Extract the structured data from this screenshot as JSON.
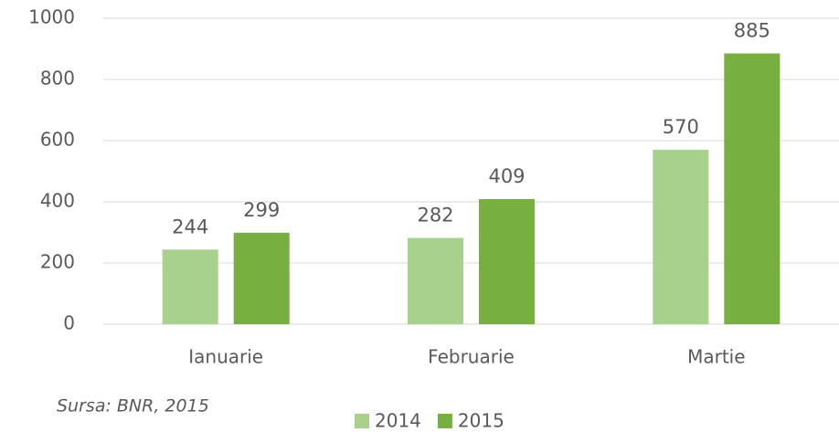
{
  "chart_data": {
    "type": "bar",
    "categories": [
      "Ianuarie",
      "Februarie",
      "Martie"
    ],
    "series": [
      {
        "name": "2014",
        "color": "#a9d18e",
        "values": [
          244,
          282,
          570
        ]
      },
      {
        "name": "2015",
        "color": "#77b041",
        "values": [
          299,
          409,
          885
        ]
      }
    ],
    "ylim": [
      0,
      1000
    ],
    "yticks": [
      0,
      200,
      400,
      600,
      800,
      1000
    ],
    "grid": true,
    "legend": "bottom",
    "source": "Sursa: BNR, 2015"
  }
}
